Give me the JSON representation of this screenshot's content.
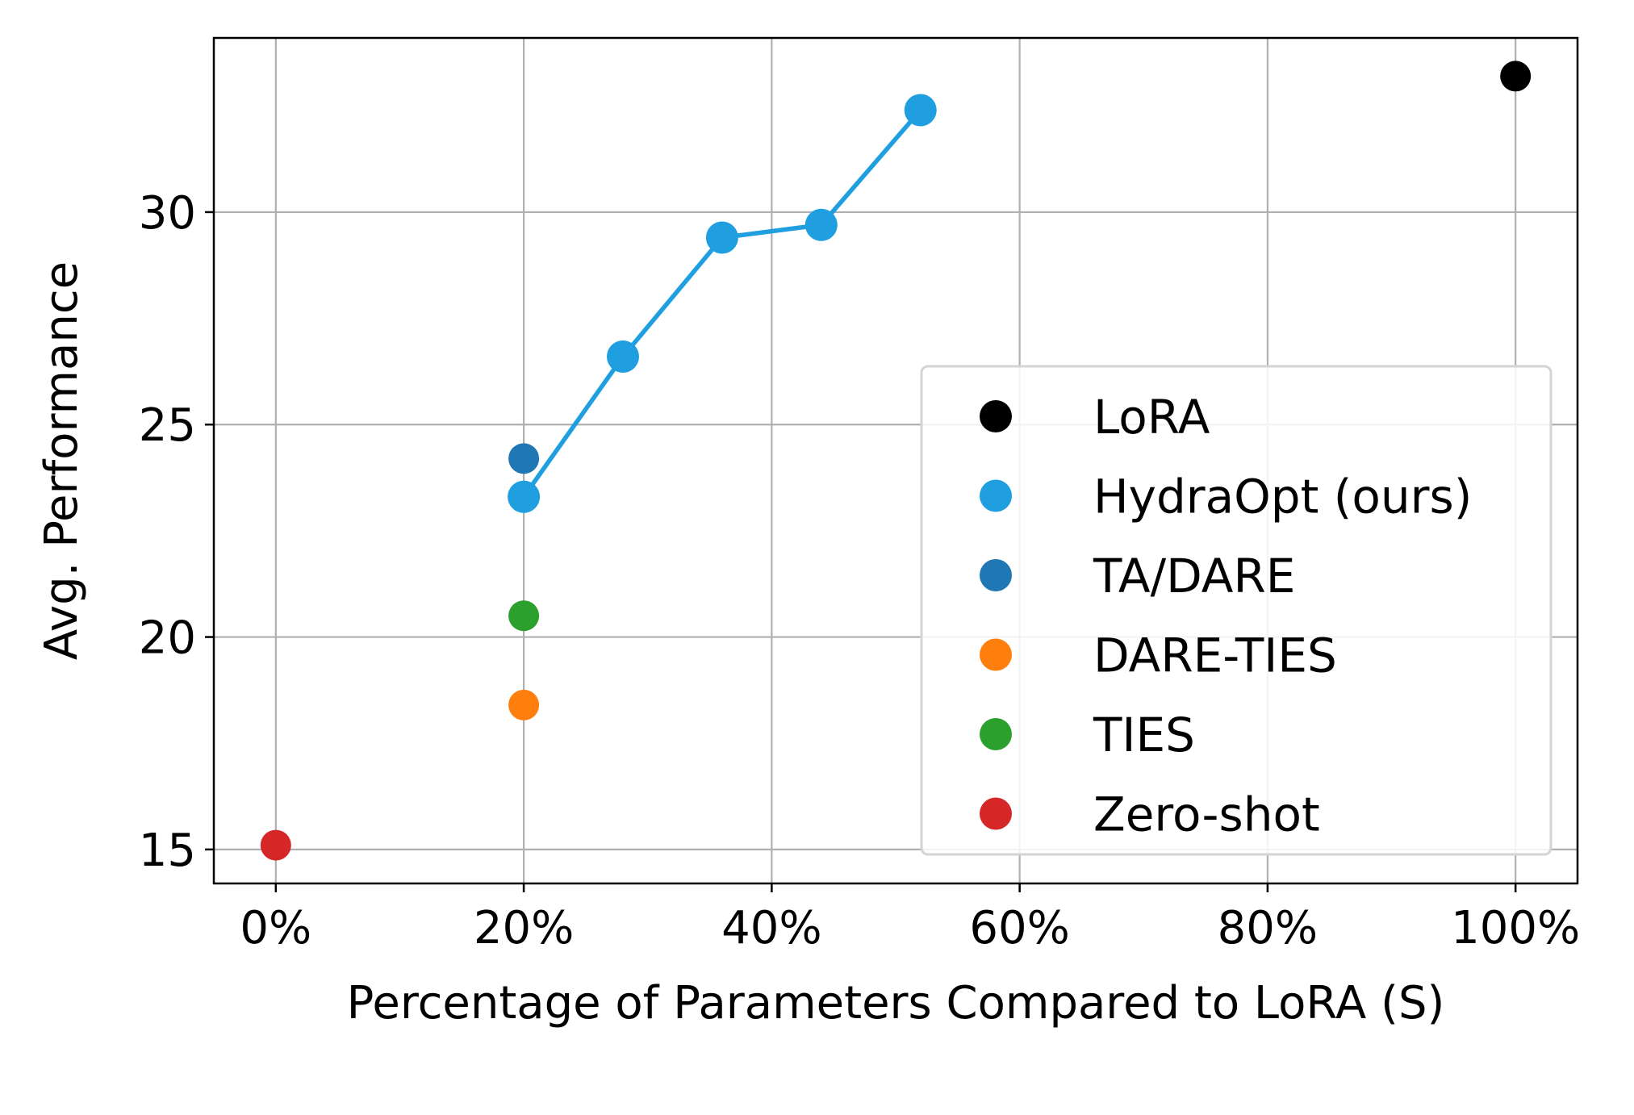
{
  "chart_data": {
    "type": "scatter",
    "title": "",
    "xlabel": "Percentage of Parameters Compared to LoRA (S)",
    "ylabel": "Avg. Performance",
    "xlim": [
      -5,
      105
    ],
    "ylim": [
      14.2,
      34.1
    ],
    "x_ticks": [
      0,
      20,
      40,
      60,
      80,
      100
    ],
    "x_tick_labels": [
      "0%",
      "20%",
      "40%",
      "60%",
      "80%",
      "100%"
    ],
    "y_ticks": [
      15,
      20,
      25,
      30
    ],
    "y_tick_labels": [
      "15",
      "20",
      "25",
      "30"
    ],
    "grid": true,
    "legend_position": "lower-right",
    "series": [
      {
        "name": "LoRA",
        "color": "#000000",
        "connected": false,
        "points": [
          {
            "x": 100,
            "y": 33.2
          }
        ]
      },
      {
        "name": "HydraOpt (ours)",
        "color": "#1f9fdf",
        "connected": true,
        "points": [
          {
            "x": 20,
            "y": 23.3
          },
          {
            "x": 28,
            "y": 26.6
          },
          {
            "x": 36,
            "y": 29.4
          },
          {
            "x": 44,
            "y": 29.7
          },
          {
            "x": 52,
            "y": 32.4
          }
        ]
      },
      {
        "name": "TA/DARE",
        "color": "#1f77b4",
        "connected": false,
        "points": [
          {
            "x": 20,
            "y": 24.2
          }
        ]
      },
      {
        "name": "DARE-TIES",
        "color": "#ff7f0e",
        "connected": false,
        "points": [
          {
            "x": 20,
            "y": 18.4
          }
        ]
      },
      {
        "name": "TIES",
        "color": "#2ca02c",
        "connected": false,
        "points": [
          {
            "x": 20,
            "y": 20.5
          }
        ]
      },
      {
        "name": "Zero-shot",
        "color": "#d62728",
        "connected": false,
        "points": [
          {
            "x": 0,
            "y": 15.1
          }
        ]
      }
    ]
  }
}
